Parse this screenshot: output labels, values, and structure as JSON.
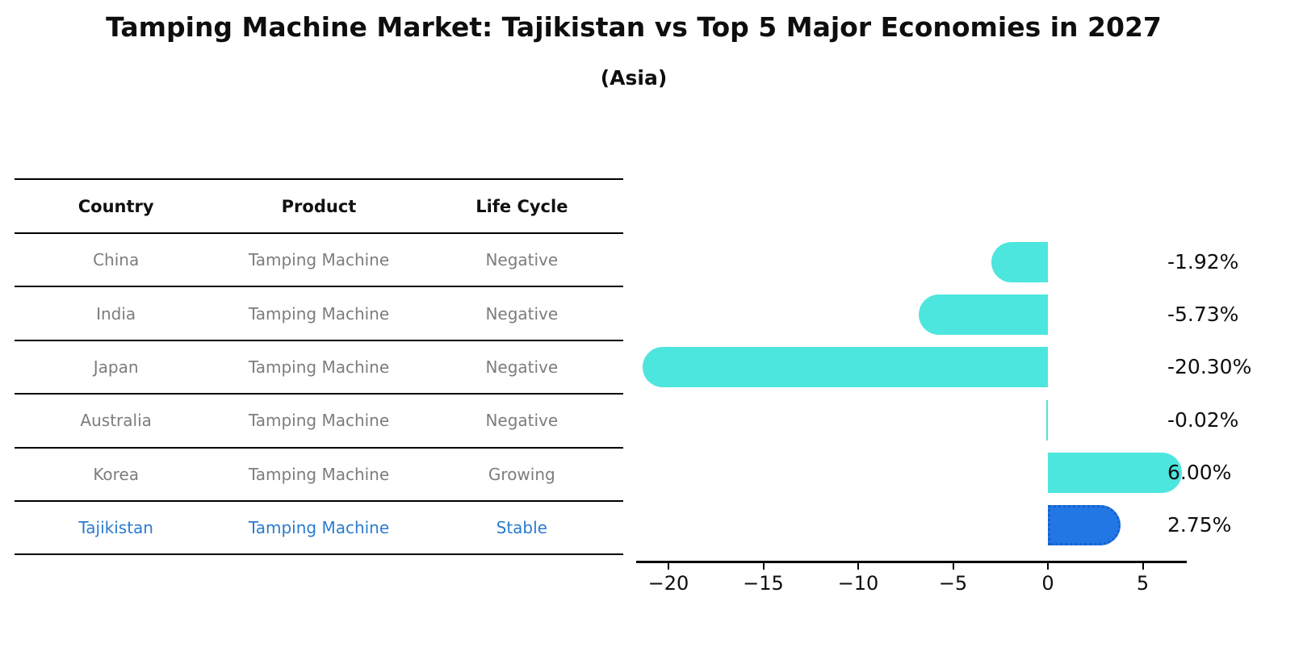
{
  "title": "Tamping Machine Market: Tajikistan vs Top 5 Major Economies in 2027",
  "subtitle": "(Asia)",
  "table": {
    "headers": [
      "Country",
      "Product",
      "Life Cycle"
    ],
    "rows": [
      {
        "country": "China",
        "product": "Tamping Machine",
        "life_cycle": "Negative",
        "highlighted": false
      },
      {
        "country": "India",
        "product": "Tamping Machine",
        "life_cycle": "Negative",
        "highlighted": false
      },
      {
        "country": "Japan",
        "product": "Tamping Machine",
        "life_cycle": "Negative",
        "highlighted": false
      },
      {
        "country": "Australia",
        "product": "Tamping Machine",
        "life_cycle": "Negative",
        "highlighted": false
      },
      {
        "country": "Korea",
        "product": "Tamping Machine",
        "life_cycle": "Growing",
        "highlighted": false
      },
      {
        "country": "Tajikistan",
        "product": "Tamping Machine",
        "life_cycle": "Stable",
        "highlighted": true
      }
    ]
  },
  "chart_data": {
    "type": "bar",
    "orientation": "horizontal",
    "categories": [
      "China",
      "India",
      "Japan",
      "Australia",
      "Korea",
      "Tajikistan"
    ],
    "values": [
      -1.92,
      -5.73,
      -20.3,
      -0.02,
      6.0,
      2.75
    ],
    "value_labels": [
      "-1.92%",
      "-5.73%",
      "-20.30%",
      "-0.02%",
      "6.00%",
      "2.75%"
    ],
    "x_ticks": [
      -20,
      -15,
      -10,
      -5,
      0,
      5
    ],
    "x_tick_labels": [
      "−20",
      "−15",
      "−10",
      "−5",
      "0",
      "5"
    ],
    "xlim": [
      -21.6,
      7.3
    ],
    "grid": false,
    "legend": false,
    "bar_color": "#4ce6de",
    "highlight_color": "#2277e5",
    "highlight_border_color": "#1660cd",
    "highlight_index": 5,
    "highlight_style": "dotted-border"
  }
}
